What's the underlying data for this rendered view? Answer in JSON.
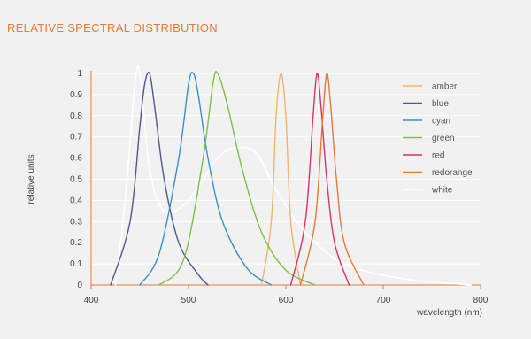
{
  "chart_data": {
    "type": "line",
    "title": "RELATIVE SPECTRAL DISTRIBUTION",
    "xlabel": "wavelength (nm)",
    "ylabel": "relative units",
    "xlim": [
      400,
      800
    ],
    "ylim": [
      0,
      1
    ],
    "x_ticks": [
      "400",
      "500",
      "600",
      "700",
      "800"
    ],
    "y_ticks": [
      "0",
      "0.1",
      "0.2",
      "0.3",
      "0.4",
      "0.5",
      "0.6",
      "0.7",
      "0.8",
      "0.9",
      "1"
    ],
    "grid": true,
    "legend_position": "right",
    "series": [
      {
        "name": "amber",
        "color": "#f6b26b",
        "x": [
          575,
          585,
          590,
          595,
          600,
          605,
          615
        ],
        "y": [
          0,
          0.3,
          0.8,
          1.0,
          0.8,
          0.3,
          0
        ]
      },
      {
        "name": "blue",
        "color": "#4a5a8c",
        "x": [
          420,
          440,
          450,
          455,
          460,
          465,
          475,
          490,
          510,
          520
        ],
        "y": [
          0,
          0.3,
          0.75,
          0.95,
          1.0,
          0.85,
          0.5,
          0.2,
          0.05,
          0
        ]
      },
      {
        "name": "cyan",
        "color": "#3a8fc8",
        "x": [
          450,
          470,
          490,
          500,
          505,
          510,
          520,
          535,
          560,
          585
        ],
        "y": [
          0,
          0.15,
          0.6,
          0.95,
          1.0,
          0.9,
          0.6,
          0.3,
          0.08,
          0
        ]
      },
      {
        "name": "green",
        "color": "#7cc04a",
        "x": [
          470,
          495,
          515,
          525,
          530,
          540,
          555,
          575,
          600,
          630
        ],
        "y": [
          0,
          0.12,
          0.6,
          0.95,
          1.0,
          0.85,
          0.55,
          0.25,
          0.07,
          0
        ]
      },
      {
        "name": "red",
        "color": "#d6336c",
        "x": [
          605,
          620,
          628,
          632,
          636,
          642,
          650,
          665
        ],
        "y": [
          0,
          0.3,
          0.8,
          1.0,
          0.85,
          0.5,
          0.2,
          0
        ]
      },
      {
        "name": "redorange",
        "color": "#e87a32",
        "x": [
          615,
          630,
          638,
          642,
          646,
          652,
          660,
          680
        ],
        "y": [
          0,
          0.3,
          0.8,
          1.0,
          0.85,
          0.5,
          0.2,
          0
        ]
      },
      {
        "name": "white",
        "color": "#ffffff",
        "x": [
          425,
          435,
          445,
          450,
          460,
          475,
          500,
          530,
          550,
          570,
          590,
          620,
          660,
          720,
          790
        ],
        "y": [
          0,
          0.4,
          0.95,
          1.0,
          0.55,
          0.35,
          0.4,
          0.6,
          0.65,
          0.62,
          0.45,
          0.25,
          0.1,
          0.03,
          0
        ]
      }
    ]
  }
}
